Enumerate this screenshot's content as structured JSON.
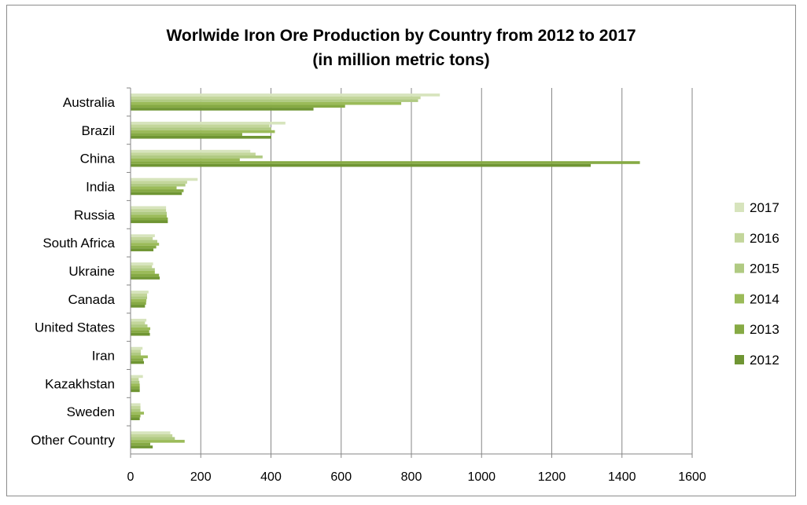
{
  "chart_data": {
    "type": "bar",
    "orientation": "horizontal",
    "title": "Worlwide Iron Ore Production by Country from 2012 to 2017",
    "subtitle": "(in million metric tons)",
    "categories": [
      "Australia",
      "Brazil",
      "China",
      "India",
      "Russia",
      "South Africa",
      "Ukraine",
      "Canada",
      "United States",
      "Iran",
      "Kazakhstan",
      "Sweden",
      "Other Country"
    ],
    "series": [
      {
        "name": "2017",
        "color": "#d7e4bd",
        "values": [
          880,
          440,
          340,
          190,
          100,
          68,
          63,
          50,
          44,
          33,
          34,
          27,
          112
        ]
      },
      {
        "name": "2016",
        "color": "#c3d69b",
        "values": [
          825,
          395,
          355,
          160,
          100,
          62,
          60,
          46,
          40,
          28,
          22,
          27,
          118
        ]
      },
      {
        "name": "2015",
        "color": "#b0ca82",
        "values": [
          818,
          400,
          375,
          155,
          102,
          75,
          68,
          46,
          47,
          28,
          24,
          27,
          125
        ]
      },
      {
        "name": "2014",
        "color": "#9bbb59",
        "values": [
          770,
          410,
          310,
          130,
          102,
          80,
          68,
          44,
          55,
          48,
          25,
          37,
          153
        ]
      },
      {
        "name": "2013",
        "color": "#86aa44",
        "values": [
          610,
          317,
          1450,
          150,
          105,
          72,
          80,
          43,
          52,
          35,
          25,
          27,
          55
        ]
      },
      {
        "name": "2012",
        "color": "#6f9533",
        "values": [
          520,
          400,
          1310,
          145,
          105,
          64,
          82,
          40,
          54,
          37,
          25,
          25,
          62
        ]
      }
    ],
    "xlim": [
      0,
      1600
    ],
    "xticks": [
      "0",
      "200",
      "400",
      "600",
      "800",
      "1000",
      "1200",
      "1400",
      "1600"
    ],
    "grid": "vertical",
    "legend_position": "right"
  }
}
